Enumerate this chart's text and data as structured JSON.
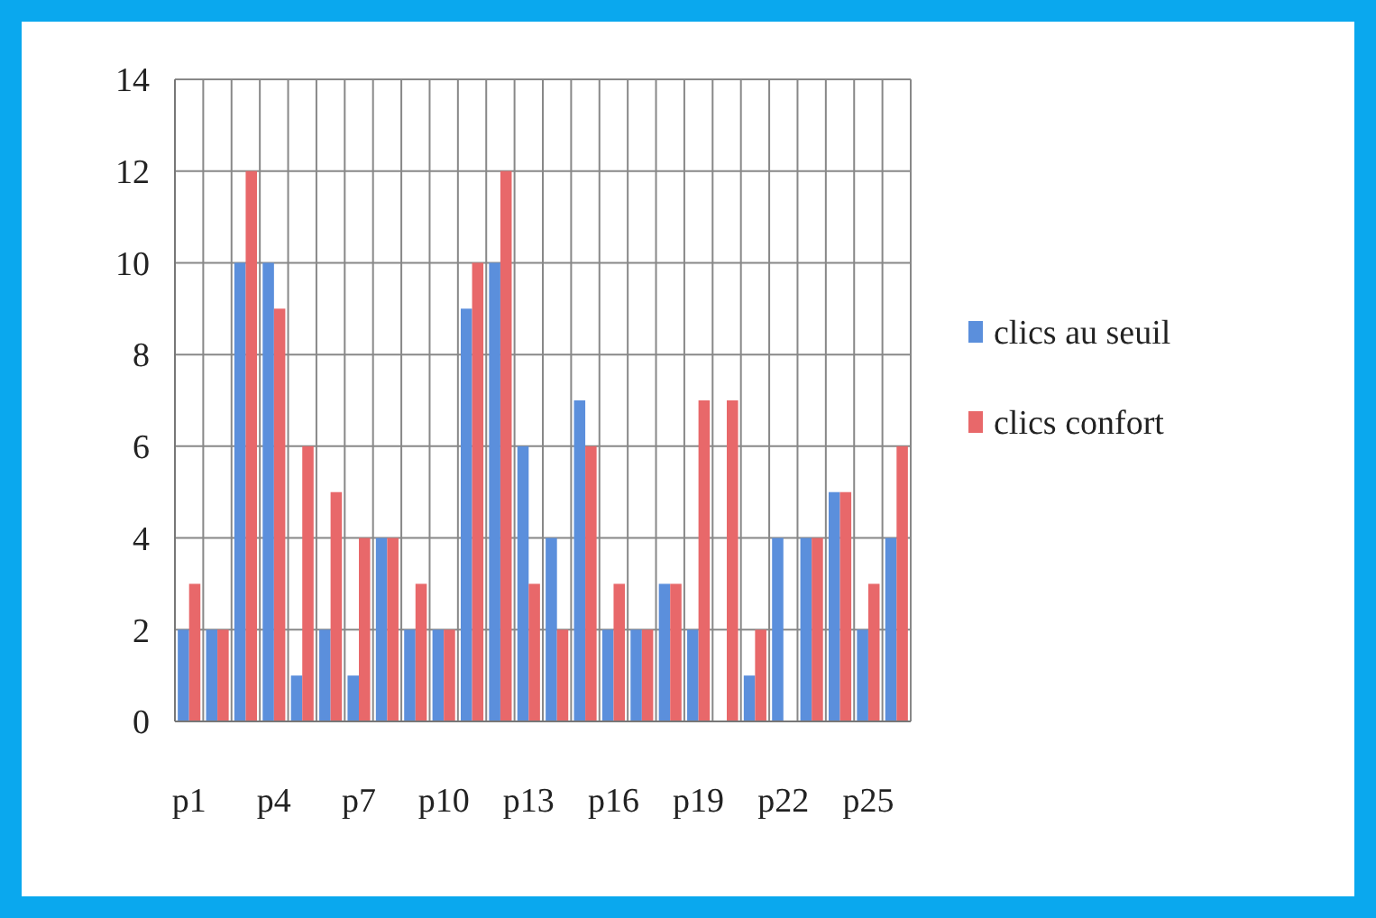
{
  "chart_data": {
    "type": "bar",
    "categories": [
      "p1",
      null,
      null,
      "p4",
      null,
      null,
      "p7",
      null,
      null,
      "p10",
      null,
      null,
      "p13",
      null,
      null,
      "p16",
      null,
      null,
      "p19",
      null,
      null,
      "p22",
      null,
      null,
      "p25",
      null
    ],
    "series": [
      {
        "name": "clics au seuil",
        "color": "#5b8fdc",
        "values": [
          2,
          2,
          10,
          10,
          1,
          2,
          1,
          4,
          2,
          2,
          9,
          10,
          6,
          4,
          7,
          2,
          2,
          3,
          2,
          0,
          1,
          4,
          4,
          5,
          2,
          4
        ]
      },
      {
        "name": "clics confort",
        "color": "#e8686a",
        "values": [
          3,
          2,
          12,
          9,
          6,
          5,
          4,
          4,
          3,
          2,
          10,
          12,
          3,
          2,
          6,
          3,
          2,
          3,
          7,
          7,
          2,
          0,
          4,
          5,
          3,
          6
        ]
      }
    ],
    "ylim": [
      0,
      14
    ],
    "yticks": [
      0,
      2,
      4,
      6,
      8,
      10,
      12,
      14
    ],
    "grid": true,
    "legend": "right"
  }
}
